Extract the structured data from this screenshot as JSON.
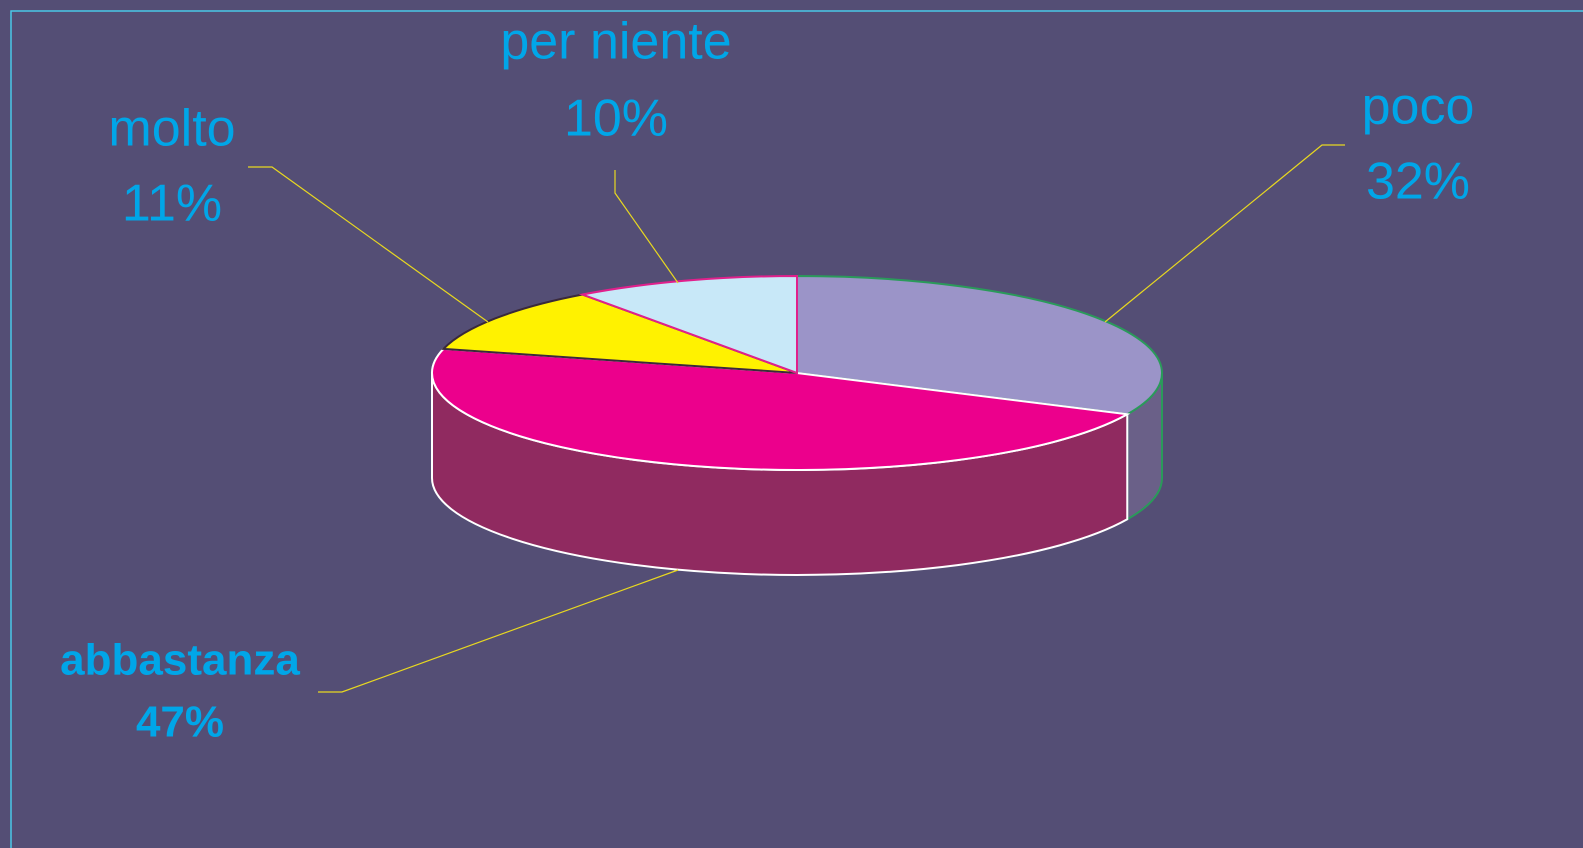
{
  "chart_data": {
    "type": "pie3d",
    "categories": [
      "poco",
      "abbastanza",
      "molto",
      "per niente"
    ],
    "values": [
      32,
      47,
      11,
      10
    ],
    "value_labels": [
      "32%",
      "47%",
      "11%",
      "10%"
    ],
    "colors": [
      "#9b94c8",
      "#ec008c",
      "#fff200",
      "#c8e8f8"
    ]
  }
}
